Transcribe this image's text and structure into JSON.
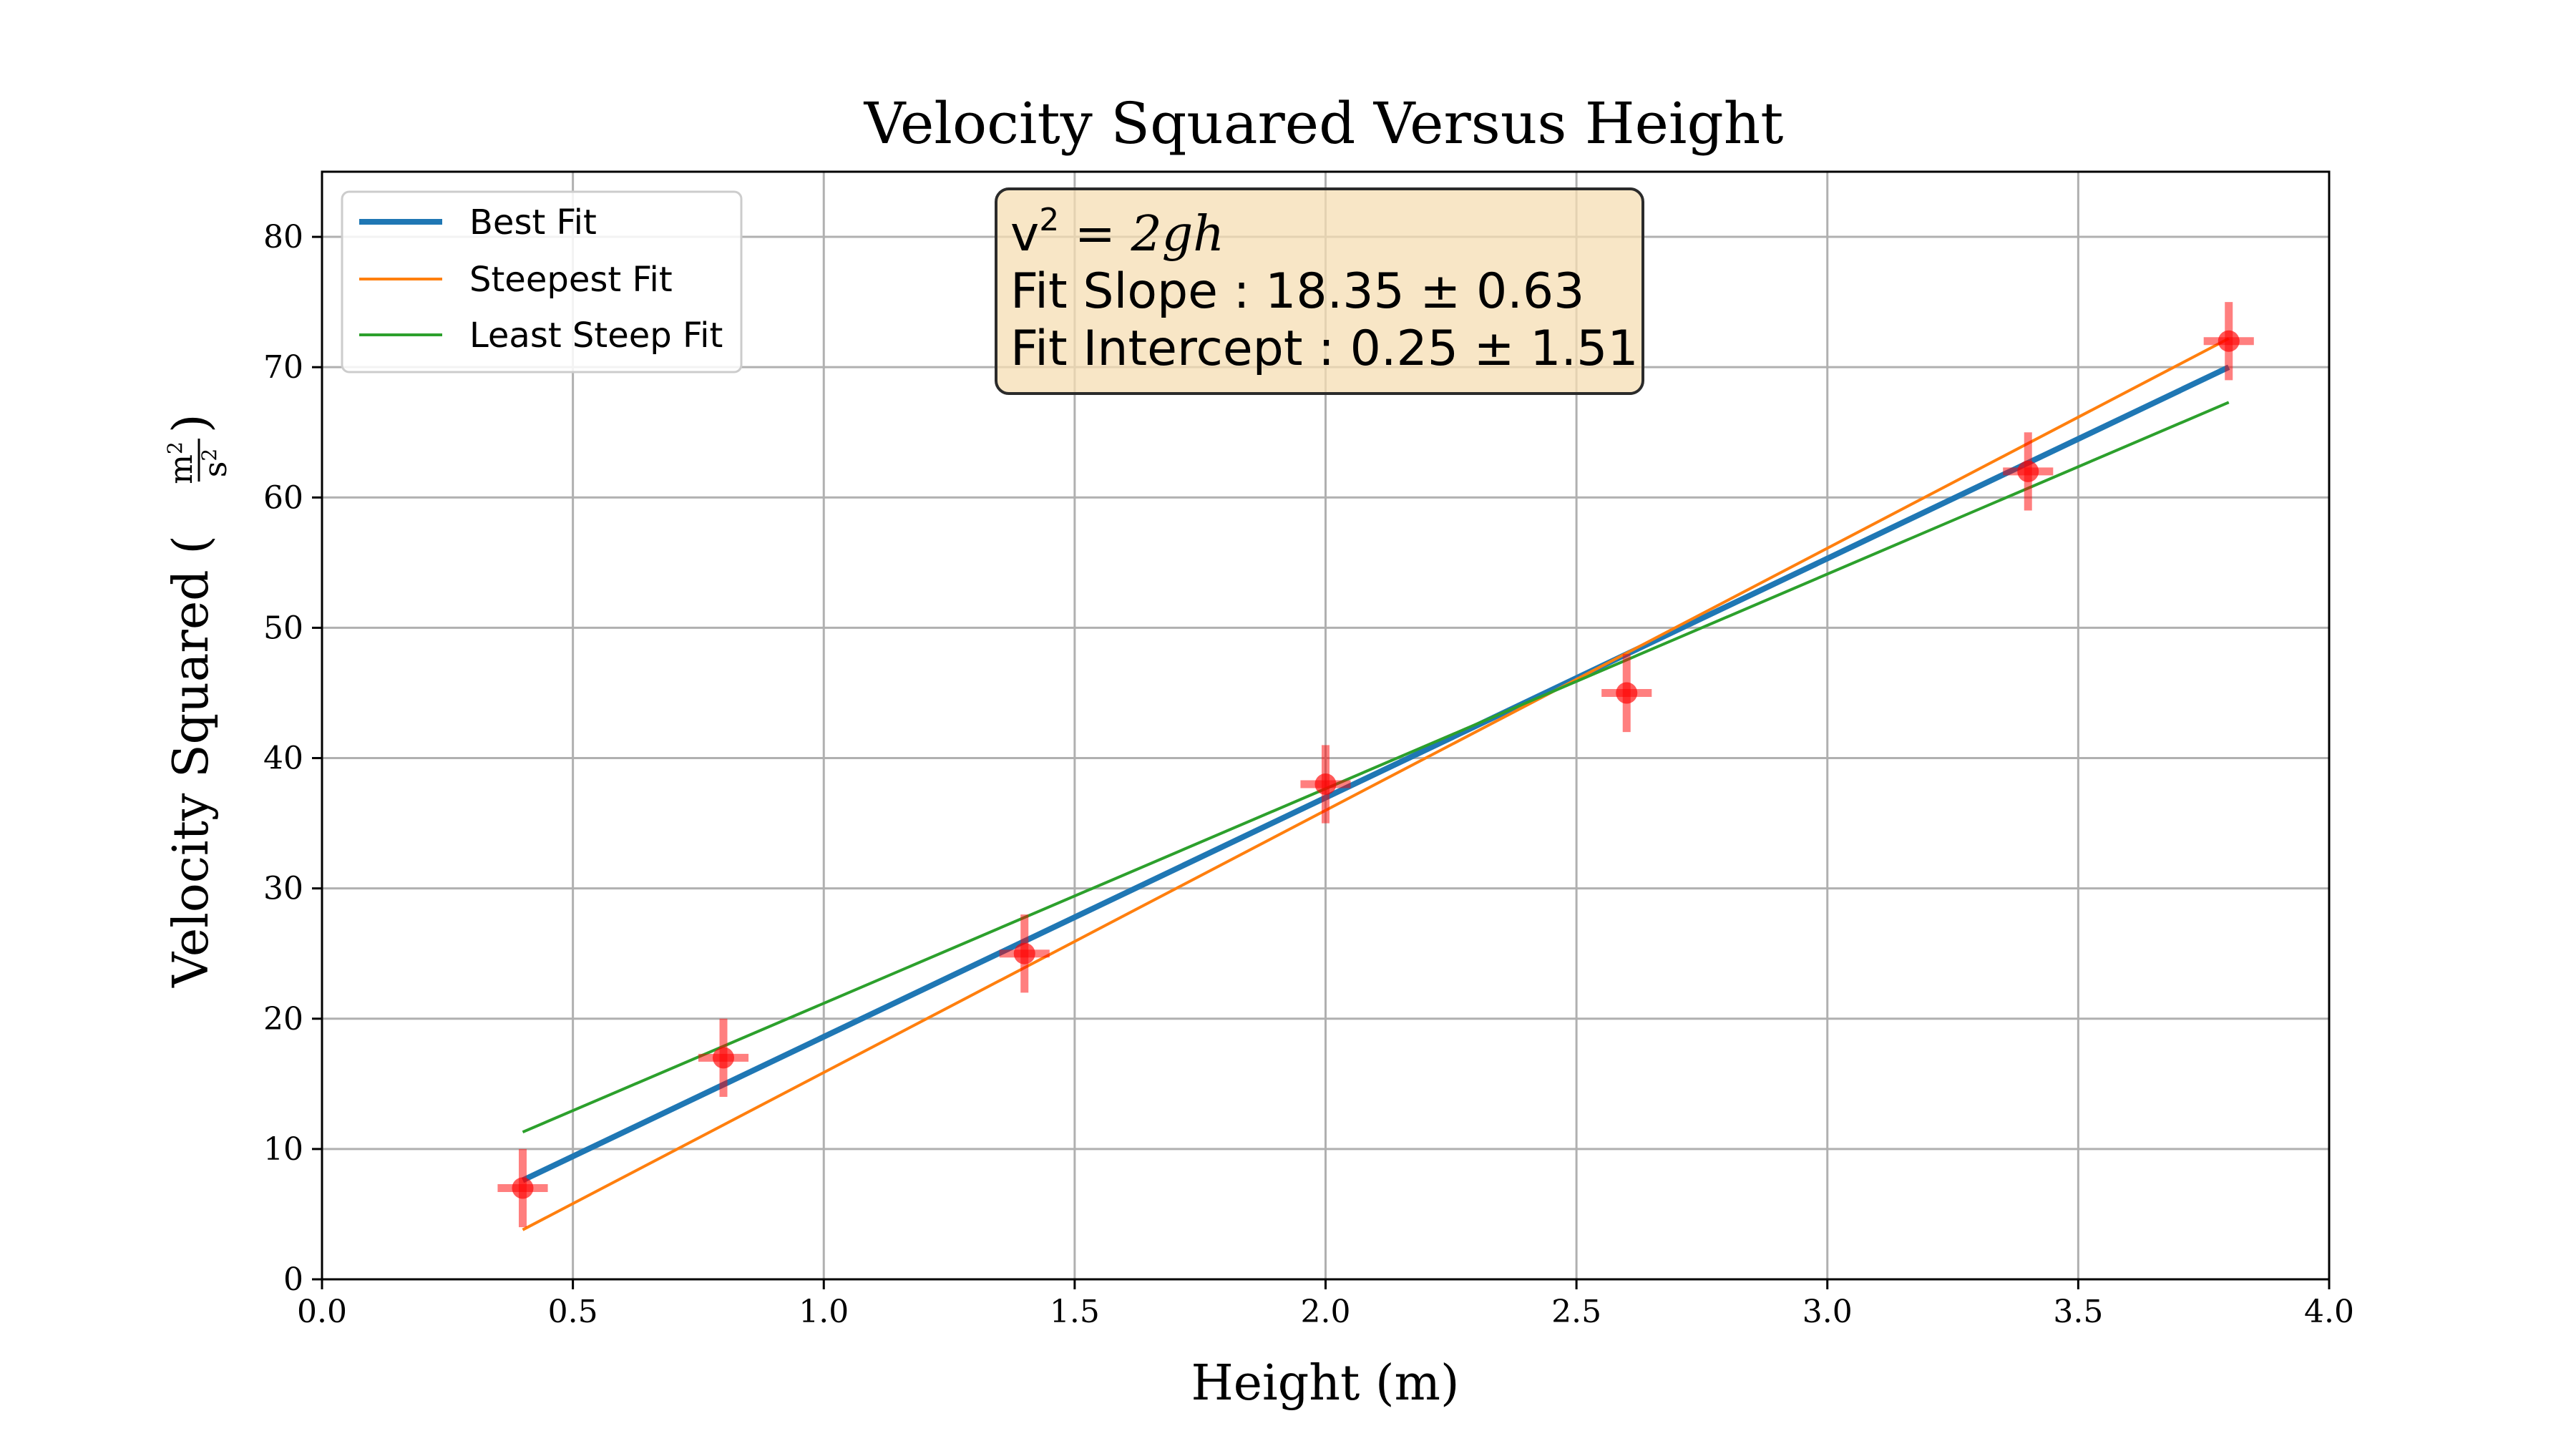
{
  "chart_data": {
    "type": "scatter",
    "title": "Velocity Squared Versus Height",
    "xlabel": "Height (m)",
    "ylabel": "Velocity Squared (",
    "ylabel_unit_num": "m",
    "ylabel_unit_den": "s",
    "ylabel_unit_exp": "2",
    "ylabel_close": ")",
    "xlim": [
      0.0,
      4.0
    ],
    "ylim": [
      0,
      85
    ],
    "xticks": [
      0.0,
      0.5,
      1.0,
      1.5,
      2.0,
      2.5,
      3.0,
      3.5,
      4.0
    ],
    "xtick_labels": [
      "0.0",
      "0.5",
      "1.0",
      "1.5",
      "2.0",
      "2.5",
      "3.0",
      "3.5",
      "4.0"
    ],
    "yticks": [
      0,
      10,
      20,
      30,
      40,
      50,
      60,
      70,
      80
    ],
    "ytick_labels": [
      "0",
      "10",
      "20",
      "30",
      "40",
      "50",
      "60",
      "70",
      "80"
    ],
    "grid": true,
    "legend_position": "top-left",
    "data_points": {
      "x": [
        0.4,
        0.8,
        1.4,
        2.0,
        2.6,
        3.4,
        3.8
      ],
      "y": [
        7,
        17,
        25,
        38,
        45,
        62,
        72
      ],
      "xerr": 0.05,
      "yerr": 3,
      "color": "#ff0000"
    },
    "series": [
      {
        "name": "Best Fit",
        "x": [
          0.4,
          3.8
        ],
        "y": [
          7.6,
          70.0
        ],
        "color": "#1f77b4",
        "width": 8
      },
      {
        "name": "Steepest Fit",
        "x": [
          0.4,
          3.8
        ],
        "y": [
          3.8,
          72.2
        ],
        "color": "#ff7f0e",
        "width": 4
      },
      {
        "name": "Least Steep Fit",
        "x": [
          0.4,
          3.8
        ],
        "y": [
          11.3,
          67.3
        ],
        "color": "#2ca02c",
        "width": 4
      }
    ],
    "annotation": {
      "line1_v": "v",
      "line1_exp": "2",
      "line1_eq": " = ",
      "line1_rhs": "2gh",
      "line2": "Fit Slope : 18.35 ± 0.63",
      "line3": "Fit Intercept : 0.25 ± 1.51",
      "background": "#f5deb3"
    }
  }
}
